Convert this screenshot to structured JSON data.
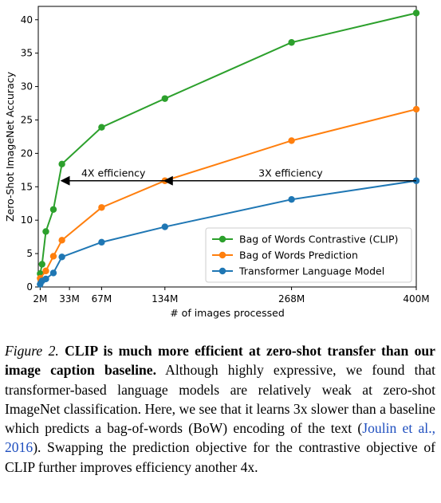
{
  "chart_data": {
    "type": "line",
    "xlabel": "# of images processed",
    "ylabel": "Zero-Shot ImageNet Accuracy",
    "xlim": [
      0,
      400
    ],
    "ylim": [
      0,
      42
    ],
    "x_ticks": [
      {
        "value": 2,
        "label": "2M"
      },
      {
        "value": 33,
        "label": "33M"
      },
      {
        "value": 67,
        "label": "67M"
      },
      {
        "value": 134,
        "label": "134M"
      },
      {
        "value": 268,
        "label": "268M"
      },
      {
        "value": 400,
        "label": "400M"
      }
    ],
    "y_ticks": [
      0,
      5,
      10,
      15,
      20,
      25,
      30,
      35,
      40
    ],
    "grid": false,
    "legend_position": "bottom-right",
    "series": [
      {
        "name": "Bag of Words Contrastive (CLIP)",
        "color": "#2ca02c",
        "points": [
          [
            2,
            2.0
          ],
          [
            4,
            3.4
          ],
          [
            8,
            8.3
          ],
          [
            16,
            11.6
          ],
          [
            25,
            18.4
          ],
          [
            67,
            23.9
          ],
          [
            134,
            28.2
          ],
          [
            268,
            36.6
          ],
          [
            400,
            41.0
          ]
        ]
      },
      {
        "name": "Bag of Words Prediction",
        "color": "#ff7f0e",
        "points": [
          [
            2,
            1.3
          ],
          [
            8,
            2.4
          ],
          [
            16,
            4.6
          ],
          [
            25,
            7.0
          ],
          [
            67,
            11.9
          ],
          [
            134,
            15.9
          ],
          [
            268,
            21.9
          ],
          [
            400,
            26.6
          ]
        ]
      },
      {
        "name": "Transformer Language Model",
        "color": "#1f77b4",
        "points": [
          [
            2,
            0.4
          ],
          [
            4,
            0.9
          ],
          [
            8,
            1.2
          ],
          [
            16,
            2.1
          ],
          [
            25,
            4.5
          ],
          [
            67,
            6.7
          ],
          [
            134,
            9.0
          ],
          [
            268,
            13.1
          ],
          [
            400,
            15.9
          ]
        ]
      }
    ],
    "annotations": [
      {
        "text": "4X efficiency",
        "from": [
          134,
          15.9
        ],
        "to": [
          25,
          15.9
        ]
      },
      {
        "text": "3X efficiency",
        "from": [
          400,
          15.9
        ],
        "to": [
          134,
          15.9
        ]
      }
    ]
  },
  "caption": {
    "figure_label": "Figure 2.",
    "bold_text": "CLIP is much more efficient at zero-shot transfer than our image caption baseline.",
    "body_text_1": "Although highly expressive, we found that transformer-based language models are relatively weak at zero-shot ImageNet classification. Here, we see that it learns 3x slower than a baseline which predicts a bag-of-words (BoW) encoding of the text (",
    "citation": "Joulin et al., 2016",
    "body_text_2": "). Swapping the prediction objective for the contrastive objective of CLIP further improves efficiency another 4x."
  }
}
